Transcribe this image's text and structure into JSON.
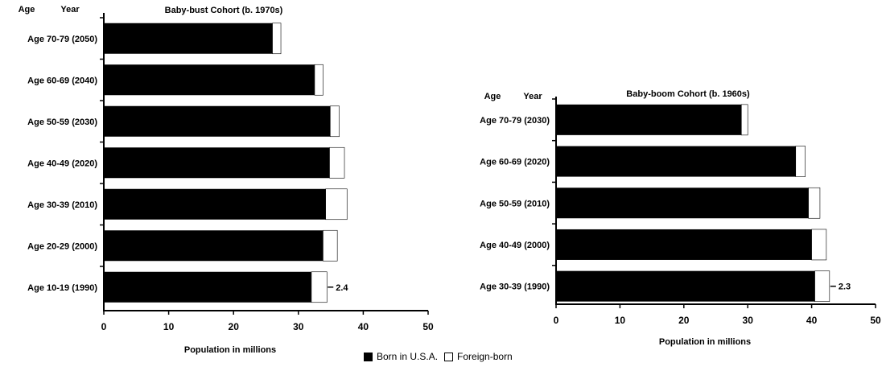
{
  "chart_data": [
    {
      "type": "bar",
      "orientation": "horizontal",
      "stacked": true,
      "title": "Baby-bust Cohort (b. 1970s)",
      "age_header": "Age",
      "year_header": "Year",
      "categories": [
        "Age 70-79 (2050)",
        "Age 60-69 (2040)",
        "Age 50-59 (2030)",
        "Age 40-49 (2020)",
        "Age 30-39 (2010)",
        "Age 20-29 (2000)",
        "Age 10-19 (1990)"
      ],
      "series": [
        {
          "name": "Born in U.S.A.",
          "color": "#000000",
          "values": [
            26.0,
            32.5,
            34.9,
            34.8,
            34.2,
            33.8,
            32.0
          ]
        },
        {
          "name": "Foreign-born",
          "color": "#ffffff",
          "values": [
            1.3,
            1.3,
            1.4,
            2.3,
            3.3,
            2.2,
            2.4
          ]
        }
      ],
      "annotations": [
        {
          "category": "Age 10-19 (1990)",
          "text": "2.4"
        }
      ],
      "xlabel": "Population in millions",
      "xlim": [
        0,
        50
      ],
      "xticks": [
        "0",
        "10",
        "20",
        "30",
        "40",
        "50"
      ]
    },
    {
      "type": "bar",
      "orientation": "horizontal",
      "stacked": true,
      "title": "Baby-boom Cohort (b. 1960s)",
      "age_header": "Age",
      "year_header": "Year",
      "categories": [
        "Age 70-79 (2030)",
        "Age 60-69 (2020)",
        "Age 50-59 (2010)",
        "Age 40-49 (2000)",
        "Age 30-39 (1990)"
      ],
      "series": [
        {
          "name": "Born in U.S.A.",
          "color": "#000000",
          "values": [
            29.0,
            37.5,
            39.5,
            40.0,
            40.5
          ]
        },
        {
          "name": "Foreign-born",
          "color": "#ffffff",
          "values": [
            1.0,
            1.5,
            1.8,
            2.3,
            2.3
          ]
        }
      ],
      "annotations": [
        {
          "category": "Age 30-39 (1990)",
          "text": "2.3"
        }
      ],
      "xlabel": "Population in millions",
      "xlim": [
        0,
        50
      ],
      "xticks": [
        "0",
        "10",
        "20",
        "30",
        "40",
        "50"
      ]
    }
  ],
  "legend": [
    {
      "label": "Born in U.S.A.",
      "color": "#000000"
    },
    {
      "label": "Foreign-born",
      "color": "#ffffff"
    }
  ]
}
